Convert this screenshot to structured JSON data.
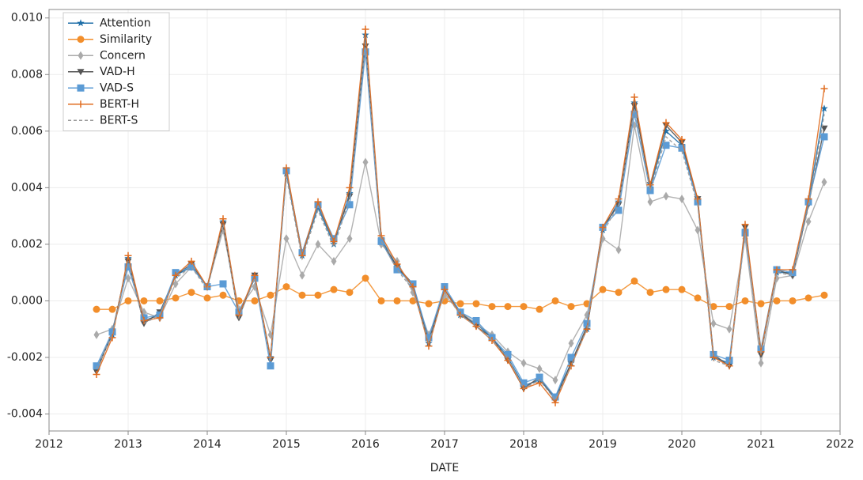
{
  "chart_data": {
    "type": "line",
    "x_label": "DATE",
    "x": [
      2012.6,
      2012.8,
      2013.0,
      2013.2,
      2013.4,
      2013.6,
      2013.8,
      2014.0,
      2014.2,
      2014.4,
      2014.6,
      2014.8,
      2015.0,
      2015.2,
      2015.4,
      2015.6,
      2015.8,
      2016.0,
      2016.2,
      2016.4,
      2016.6,
      2016.8,
      2017.0,
      2017.2,
      2017.4,
      2017.6,
      2017.8,
      2018.0,
      2018.2,
      2018.4,
      2018.6,
      2018.8,
      2019.0,
      2019.2,
      2019.4,
      2019.6,
      2019.8,
      2020.0,
      2020.2,
      2020.4,
      2020.6,
      2020.8,
      2021.0,
      2021.2,
      2021.4,
      2021.6,
      2021.8
    ],
    "series": [
      {
        "name": "Attention",
        "color": "#1f6fa8",
        "marker": "star",
        "values": [
          -0.0024,
          -0.0012,
          0.0015,
          -0.0007,
          -0.0005,
          0.0009,
          0.0012,
          0.0005,
          0.0028,
          -0.0005,
          0.0008,
          -0.002,
          0.0045,
          0.0016,
          0.0033,
          0.002,
          0.0038,
          0.0094,
          0.0022,
          0.0012,
          0.0005,
          -0.0015,
          0.0004,
          -0.0005,
          -0.0008,
          -0.0013,
          -0.002,
          -0.003,
          -0.0028,
          -0.0034,
          -0.0022,
          -0.001,
          0.0025,
          0.0035,
          0.007,
          0.004,
          0.006,
          0.0055,
          0.0035,
          -0.002,
          -0.0022,
          0.0025,
          -0.0018,
          0.001,
          0.001,
          0.0035,
          0.0068
        ]
      },
      {
        "name": "Similarity",
        "color": "#f28e2b",
        "marker": "circle",
        "values": [
          -0.0003,
          -0.0003,
          0.0,
          0.0,
          0.0,
          0.0001,
          0.0003,
          0.0001,
          0.0002,
          0.0,
          0.0,
          0.0002,
          0.0005,
          0.0002,
          0.0002,
          0.0004,
          0.0003,
          0.0008,
          0.0,
          0.0,
          0.0,
          -0.0001,
          0.0,
          -0.0001,
          -0.0001,
          -0.0002,
          -0.0002,
          -0.0002,
          -0.0003,
          0.0,
          -0.0002,
          -0.0001,
          0.0004,
          0.0003,
          0.0007,
          0.0003,
          0.0004,
          0.0004,
          0.0001,
          -0.0002,
          -0.0002,
          0.0,
          -0.0001,
          0.0,
          0.0,
          0.0001,
          0.0002
        ]
      },
      {
        "name": "Concern",
        "color": "#aaaaaa",
        "marker": "diamond",
        "values": [
          -0.0012,
          -0.001,
          0.0008,
          -0.0004,
          -0.0006,
          0.0006,
          0.0012,
          0.0005,
          0.0025,
          -0.0003,
          0.0005,
          -0.0012,
          0.0022,
          0.0009,
          0.002,
          0.0014,
          0.0022,
          0.0049,
          0.002,
          0.0014,
          0.0003,
          -0.0012,
          0.0002,
          -0.0004,
          -0.0008,
          -0.0012,
          -0.0018,
          -0.0022,
          -0.0024,
          -0.0028,
          -0.0015,
          -0.0005,
          0.0022,
          0.0018,
          0.0062,
          0.0035,
          0.0037,
          0.0036,
          0.0025,
          -0.0008,
          -0.001,
          0.0022,
          -0.0022,
          0.0008,
          0.0009,
          0.0028,
          0.0042
        ]
      },
      {
        "name": "VAD-H",
        "color": "#555555",
        "marker": "triangle",
        "values": [
          -0.0025,
          -0.0011,
          0.0014,
          -0.0008,
          -0.0004,
          0.0009,
          0.0013,
          0.0005,
          0.0027,
          -0.0006,
          0.0009,
          -0.0021,
          0.0046,
          0.0017,
          0.0034,
          0.0021,
          0.0037,
          0.009,
          0.0021,
          0.0012,
          0.0006,
          -0.0014,
          0.0004,
          -0.0004,
          -0.0009,
          -0.0013,
          -0.0021,
          -0.0031,
          -0.0027,
          -0.0035,
          -0.0022,
          -0.0009,
          0.0026,
          0.0034,
          0.0069,
          0.0041,
          0.0062,
          0.0056,
          0.0036,
          -0.0019,
          -0.0023,
          0.0026,
          -0.0019,
          0.0011,
          0.0009,
          0.0034,
          0.0061
        ]
      },
      {
        "name": "VAD-S",
        "color": "#5b9bd5",
        "marker": "square",
        "values": [
          -0.0023,
          -0.0011,
          0.0012,
          -0.0006,
          -0.0005,
          0.001,
          0.0012,
          0.0005,
          0.0006,
          -0.0004,
          0.0008,
          -0.0023,
          0.0046,
          0.0017,
          0.0034,
          0.0022,
          0.0034,
          0.0088,
          0.0021,
          0.0011,
          0.0006,
          -0.0013,
          0.0005,
          -0.0004,
          -0.0007,
          -0.0013,
          -0.0019,
          -0.0029,
          -0.0027,
          -0.0034,
          -0.002,
          -0.0008,
          0.0026,
          0.0032,
          0.0066,
          0.0039,
          0.0055,
          0.0054,
          0.0035,
          -0.0019,
          -0.0021,
          0.0024,
          -0.0017,
          0.0011,
          0.001,
          0.0035,
          0.0058
        ]
      },
      {
        "name": "BERT-H",
        "color": "#e06c1f",
        "marker": "plus",
        "values": [
          -0.0026,
          -0.0013,
          0.0016,
          -0.0007,
          -0.0006,
          0.0009,
          0.0014,
          0.0005,
          0.0029,
          -0.0005,
          0.0009,
          -0.002,
          0.0047,
          0.0016,
          0.0035,
          0.0021,
          0.004,
          0.0096,
          0.0023,
          0.0013,
          0.0005,
          -0.0016,
          0.0004,
          -0.0005,
          -0.0009,
          -0.0014,
          -0.0021,
          -0.0031,
          -0.0029,
          -0.0036,
          -0.0023,
          -0.001,
          0.0026,
          0.0036,
          0.0072,
          0.0041,
          0.0063,
          0.0057,
          0.0036,
          -0.002,
          -0.0023,
          0.0027,
          -0.0018,
          0.0011,
          0.0011,
          0.0036,
          0.0075
        ]
      },
      {
        "name": "BERT-S",
        "color": "#999999",
        "marker": "none",
        "dashed": true,
        "values": [
          -0.0024,
          -0.0012,
          0.0014,
          -0.0008,
          -0.0005,
          0.0008,
          0.0012,
          0.0004,
          0.0027,
          -0.0006,
          0.0008,
          -0.0021,
          0.0044,
          0.0015,
          0.0032,
          0.0019,
          0.0036,
          0.0091,
          0.0021,
          0.0011,
          0.0004,
          -0.0015,
          0.0003,
          -0.0005,
          -0.0009,
          -0.0014,
          -0.002,
          -0.0031,
          -0.0028,
          -0.0035,
          -0.0023,
          -0.001,
          0.0024,
          0.0034,
          0.0068,
          0.0039,
          0.0058,
          0.0053,
          0.0034,
          -0.0021,
          -0.0023,
          0.0024,
          -0.0019,
          0.001,
          0.0009,
          0.0033,
          0.0066
        ]
      }
    ],
    "xlim": [
      2012,
      2022
    ],
    "ylim": [
      -0.0046,
      0.0103
    ],
    "xticks": [
      2012,
      2013,
      2014,
      2015,
      2016,
      2017,
      2018,
      2019,
      2020,
      2021,
      2022
    ],
    "yticks": [
      -0.004,
      -0.002,
      {
        "value": 0,
        "label": "0.000"
      },
      0.002,
      0.004,
      0.006,
      0.008,
      {
        "value": 0.01,
        "label": "0.010"
      }
    ],
    "grid": true,
    "legend": "upper left"
  }
}
